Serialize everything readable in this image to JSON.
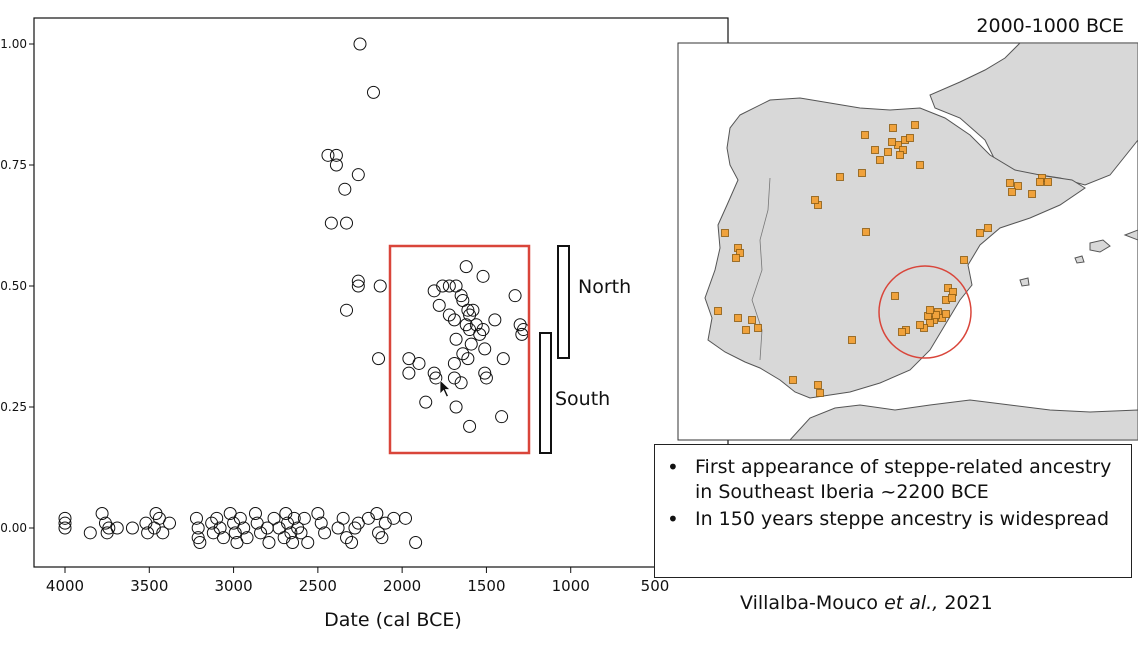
{
  "chart_data": {
    "type": "scatter",
    "xlabel": "Date (cal BCE)",
    "ylabel": "",
    "x_reversed": true,
    "xlim": [
      4200,
      500
    ],
    "ylim": [
      -0.07,
      1.05
    ],
    "xticks": [
      4000,
      3500,
      3000,
      2500,
      2000,
      1500,
      1000,
      500
    ],
    "yticks": [
      {
        "value": 0.0,
        "label": "0.00"
      },
      {
        "value": 0.25,
        "label": "0.25"
      },
      {
        "value": 0.5,
        "label": "0.50"
      },
      {
        "value": 0.75,
        "label": "0.75"
      },
      {
        "value": 1.0,
        "label": "1.00"
      }
    ],
    "marker": "open-circle",
    "series": [
      {
        "points": [
          [
            2250,
            1.0
          ],
          [
            2170,
            0.9
          ],
          [
            2440,
            0.77
          ],
          [
            2390,
            0.77
          ],
          [
            2390,
            0.75
          ],
          [
            2260,
            0.73
          ],
          [
            2340,
            0.7
          ],
          [
            2420,
            0.63
          ],
          [
            2330,
            0.63
          ],
          [
            2260,
            0.51
          ],
          [
            2260,
            0.5
          ],
          [
            2130,
            0.5
          ],
          [
            2330,
            0.45
          ],
          [
            2140,
            0.35
          ],
          [
            1620,
            0.54
          ],
          [
            1520,
            0.52
          ],
          [
            1760,
            0.5
          ],
          [
            1720,
            0.5
          ],
          [
            1680,
            0.5
          ],
          [
            1810,
            0.49
          ],
          [
            1330,
            0.48
          ],
          [
            1650,
            0.48
          ],
          [
            1640,
            0.47
          ],
          [
            1780,
            0.46
          ],
          [
            1610,
            0.45
          ],
          [
            1580,
            0.45
          ],
          [
            1600,
            0.44
          ],
          [
            1720,
            0.44
          ],
          [
            1690,
            0.43
          ],
          [
            1450,
            0.43
          ],
          [
            1620,
            0.42
          ],
          [
            1560,
            0.42
          ],
          [
            1520,
            0.41
          ],
          [
            1300,
            0.42
          ],
          [
            1280,
            0.41
          ],
          [
            1600,
            0.41
          ],
          [
            1540,
            0.4
          ],
          [
            1290,
            0.4
          ],
          [
            1680,
            0.39
          ],
          [
            1590,
            0.38
          ],
          [
            1510,
            0.37
          ],
          [
            1960,
            0.35
          ],
          [
            1640,
            0.36
          ],
          [
            1610,
            0.35
          ],
          [
            1900,
            0.34
          ],
          [
            1690,
            0.34
          ],
          [
            1400,
            0.35
          ],
          [
            1960,
            0.32
          ],
          [
            1810,
            0.32
          ],
          [
            1800,
            0.31
          ],
          [
            1510,
            0.32
          ],
          [
            1500,
            0.31
          ],
          [
            1690,
            0.31
          ],
          [
            1650,
            0.3
          ],
          [
            1860,
            0.26
          ],
          [
            1680,
            0.25
          ],
          [
            1410,
            0.23
          ],
          [
            1600,
            0.21
          ],
          [
            4000,
            0.02
          ],
          [
            4000,
            0.01
          ],
          [
            4000,
            0.0
          ],
          [
            3780,
            0.03
          ],
          [
            3760,
            0.01
          ],
          [
            3750,
            -0.01
          ],
          [
            3740,
            0.0
          ],
          [
            3690,
            0.0
          ],
          [
            3850,
            -0.01
          ],
          [
            3600,
            0.0
          ],
          [
            3520,
            0.01
          ],
          [
            3510,
            -0.01
          ],
          [
            3460,
            0.03
          ],
          [
            3440,
            0.02
          ],
          [
            3420,
            -0.01
          ],
          [
            3470,
            0.0
          ],
          [
            3380,
            0.01
          ],
          [
            3220,
            0.02
          ],
          [
            3210,
            0.0
          ],
          [
            3210,
            -0.02
          ],
          [
            3200,
            -0.03
          ],
          [
            3130,
            0.01
          ],
          [
            3120,
            -0.01
          ],
          [
            3100,
            0.02
          ],
          [
            3080,
            0.0
          ],
          [
            3060,
            -0.02
          ],
          [
            3020,
            0.03
          ],
          [
            3000,
            0.01
          ],
          [
            2990,
            -0.01
          ],
          [
            2980,
            -0.03
          ],
          [
            2960,
            0.02
          ],
          [
            2940,
            0.0
          ],
          [
            2920,
            -0.02
          ],
          [
            2870,
            0.03
          ],
          [
            2860,
            0.01
          ],
          [
            2840,
            -0.01
          ],
          [
            2800,
            0.0
          ],
          [
            2790,
            -0.03
          ],
          [
            2760,
            0.02
          ],
          [
            2730,
            0.0
          ],
          [
            2700,
            -0.02
          ],
          [
            2690,
            0.03
          ],
          [
            2680,
            0.01
          ],
          [
            2660,
            -0.01
          ],
          [
            2650,
            -0.03
          ],
          [
            2640,
            0.02
          ],
          [
            2620,
            0.0
          ],
          [
            2600,
            -0.01
          ],
          [
            2580,
            0.02
          ],
          [
            2560,
            -0.03
          ],
          [
            2500,
            0.03
          ],
          [
            2480,
            0.01
          ],
          [
            2460,
            -0.01
          ],
          [
            2380,
            0.0
          ],
          [
            2350,
            0.02
          ],
          [
            2330,
            -0.02
          ],
          [
            2300,
            -0.03
          ],
          [
            2280,
            0.0
          ],
          [
            2260,
            0.01
          ],
          [
            2200,
            0.02
          ],
          [
            2150,
            0.03
          ],
          [
            2140,
            -0.01
          ],
          [
            2120,
            -0.02
          ],
          [
            2100,
            0.01
          ],
          [
            2050,
            0.02
          ],
          [
            1980,
            0.02
          ],
          [
            1920,
            -0.03
          ]
        ]
      }
    ]
  },
  "annotations": {
    "north_label": "North",
    "south_label": "South"
  },
  "map": {
    "title": "2000-1000 BCE",
    "site_color": "#f0a23c",
    "land_color": "#d8d8d8",
    "highlight_color": "#d9453a"
  },
  "bullets": [
    "First appearance of steppe-related ancestry in Southeast Iberia ~2200 BCE",
    "In 150 years steppe ancestry is widespread"
  ],
  "citation": {
    "authors": "Villalba-Mouco",
    "etal": "et al.,",
    "year": "2021"
  },
  "colors": {
    "highlight_box": "#d9453a",
    "marker": "#111111"
  }
}
